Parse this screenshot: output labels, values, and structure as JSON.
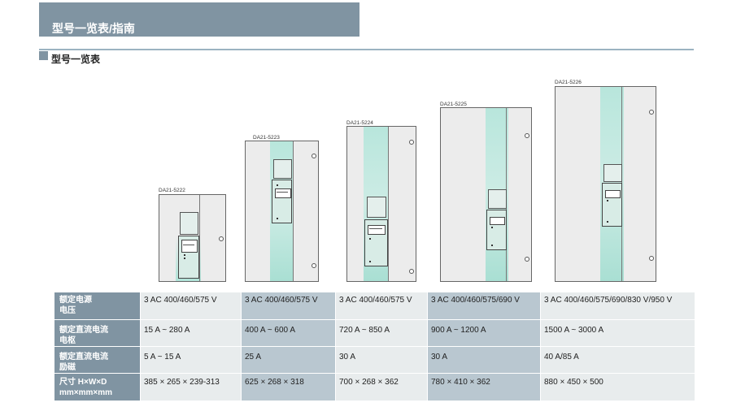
{
  "header": {
    "title": "型号一览表/指南"
  },
  "section": {
    "title": "型号一览表"
  },
  "cabinets": [
    {
      "model": "DA21-5222"
    },
    {
      "model": "DA21-5223"
    },
    {
      "model": "DA21-5224"
    },
    {
      "model": "DA21-5225"
    },
    {
      "model": "DA21-5226"
    }
  ],
  "spec_table": {
    "rows": [
      {
        "label_line1": "额定电源",
        "label_line2": "电压",
        "values": [
          "3 AC 400/460/575 V",
          "3 AC 400/460/575 V",
          "3 AC 400/460/575 V",
          "3 AC 400/460/575/690 V",
          "3 AC 400/460/575/690/830 V/950 V"
        ]
      },
      {
        "label_line1": "额定直流电流",
        "label_line2": "电枢",
        "values": [
          "15 A ~ 280 A",
          "400 A ~ 600 A",
          "720 A ~ 850 A",
          "900 A ~ 1200 A",
          "1500 A ~ 3000 A"
        ]
      },
      {
        "label_line1": "额定直流电流",
        "label_line2": "励磁",
        "values": [
          "5 A ~ 15 A",
          "25 A",
          "30 A",
          "30 A",
          "40 A/85 A"
        ]
      },
      {
        "label_line1": "尺寸 H×W×D",
        "label_line2": "mm×mm×mm",
        "values": [
          "385 × 265 × 239-313",
          "625 × 268 × 318",
          "700 × 268 × 362",
          "780 × 410 × 362",
          "880 × 450 × 500"
        ]
      }
    ]
  },
  "colors": {
    "header_bg": "#8094a2",
    "cabinet_accent": "#b8e6dc",
    "cell_light": "#e8eced",
    "cell_dark": "#b9c7d0"
  }
}
